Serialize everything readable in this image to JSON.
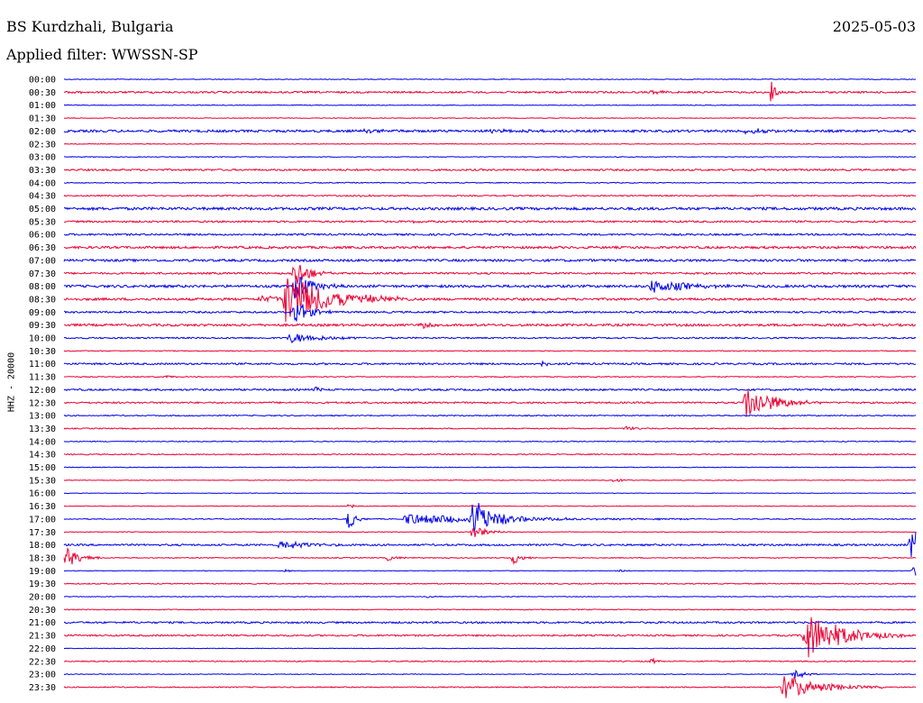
{
  "header": {
    "station": "BS Kurdzhali, Bulgaria",
    "date": "2025-05-03",
    "filter": "Applied filter: WWSSN-SP"
  },
  "chart_data": {
    "type": "line",
    "title": "BS Kurdzhali, Bulgaria",
    "date": "2025-05-03",
    "filter": "WWSSN-SP",
    "ylabel": "HHZ - 20000",
    "row_labels": [
      "00:00",
      "00:30",
      "01:00",
      "01:30",
      "02:00",
      "02:30",
      "03:00",
      "03:30",
      "04:00",
      "04:30",
      "05:00",
      "05:30",
      "06:00",
      "06:30",
      "07:00",
      "07:30",
      "08:00",
      "08:30",
      "09:00",
      "09:30",
      "10:00",
      "10:30",
      "11:00",
      "11:30",
      "12:00",
      "12:30",
      "13:00",
      "13:30",
      "14:00",
      "14:30",
      "15:00",
      "15:30",
      "16:00",
      "16:30",
      "17:00",
      "17:30",
      "18:00",
      "18:30",
      "19:00",
      "19:30",
      "20:00",
      "20:30",
      "21:00",
      "21:30",
      "22:00",
      "22:30",
      "23:00",
      "23:30"
    ],
    "colors": {
      "even": "#0000ee",
      "odd": "#ee0033"
    },
    "rows": [
      {
        "t": "00:00",
        "noise": 0.4,
        "events": []
      },
      {
        "t": "00:30",
        "noise": 1.0,
        "events": [
          {
            "at": 0.83,
            "amp": 16,
            "dur": 0.005
          },
          {
            "at": 0.69,
            "amp": 2,
            "dur": 0.02
          },
          {
            "at": 0.01,
            "amp": 2,
            "dur": 0.01
          }
        ]
      },
      {
        "t": "01:00",
        "noise": 0.4,
        "events": []
      },
      {
        "t": "01:30",
        "noise": 0.4,
        "events": []
      },
      {
        "t": "02:00",
        "noise": 1.3,
        "events": [
          {
            "at": 0.35,
            "amp": 2,
            "dur": 0.02
          },
          {
            "at": 0.8,
            "amp": 3,
            "dur": 0.03
          },
          {
            "at": 0.5,
            "amp": 1.5,
            "dur": 0.05
          }
        ]
      },
      {
        "t": "02:30",
        "noise": 0.4,
        "events": []
      },
      {
        "t": "03:00",
        "noise": 0.4,
        "events": []
      },
      {
        "t": "03:30",
        "noise": 1.0,
        "events": []
      },
      {
        "t": "04:00",
        "noise": 0.5,
        "events": []
      },
      {
        "t": "04:30",
        "noise": 0.7,
        "events": [
          {
            "at": 0.35,
            "amp": 2,
            "dur": 0.01
          }
        ]
      },
      {
        "t": "05:00",
        "noise": 1.5,
        "events": []
      },
      {
        "t": "05:30",
        "noise": 1.0,
        "events": [
          {
            "at": 0.41,
            "amp": 2,
            "dur": 0.01
          }
        ]
      },
      {
        "t": "06:00",
        "noise": 1.0,
        "events": []
      },
      {
        "t": "06:30",
        "noise": 1.3,
        "events": []
      },
      {
        "t": "07:00",
        "noise": 1.3,
        "events": []
      },
      {
        "t": "07:30",
        "noise": 1.0,
        "events": [
          {
            "at": 0.271,
            "amp": 18,
            "dur": 0.015
          }
        ]
      },
      {
        "t": "08:00",
        "noise": 1.4,
        "events": [
          {
            "at": 0.69,
            "amp": 8,
            "dur": 0.04
          },
          {
            "at": 0.271,
            "amp": 16,
            "dur": 0.02
          }
        ]
      },
      {
        "t": "08:30",
        "noise": 1.3,
        "events": [
          {
            "at": 0.26,
            "amp": 28,
            "dur": 0.05
          },
          {
            "at": 0.23,
            "amp": 4,
            "dur": 0.03
          }
        ]
      },
      {
        "t": "09:00",
        "noise": 1.0,
        "events": [
          {
            "at": 0.271,
            "amp": 16,
            "dur": 0.015
          }
        ]
      },
      {
        "t": "09:30",
        "noise": 1.3,
        "events": [
          {
            "at": 0.42,
            "amp": 3,
            "dur": 0.02
          }
        ]
      },
      {
        "t": "10:00",
        "noise": 0.8,
        "events": [
          {
            "at": 0.265,
            "amp": 6,
            "dur": 0.04
          }
        ]
      },
      {
        "t": "10:30",
        "noise": 0.5,
        "events": []
      },
      {
        "t": "11:00",
        "noise": 1.0,
        "events": [
          {
            "at": 0.56,
            "amp": 3,
            "dur": 0.01
          }
        ]
      },
      {
        "t": "11:30",
        "noise": 0.5,
        "events": [
          {
            "at": 0.12,
            "amp": 2,
            "dur": 0.01
          }
        ]
      },
      {
        "t": "12:00",
        "noise": 1.0,
        "events": [
          {
            "at": 0.295,
            "amp": 4,
            "dur": 0.01
          }
        ]
      },
      {
        "t": "12:30",
        "noise": 0.9,
        "events": [
          {
            "at": 0.8,
            "amp": 20,
            "dur": 0.03
          }
        ]
      },
      {
        "t": "13:00",
        "noise": 0.6,
        "events": []
      },
      {
        "t": "13:30",
        "noise": 0.6,
        "events": [
          {
            "at": 0.66,
            "amp": 3,
            "dur": 0.01
          }
        ]
      },
      {
        "t": "14:00",
        "noise": 0.5,
        "events": []
      },
      {
        "t": "14:30",
        "noise": 0.6,
        "events": []
      },
      {
        "t": "15:00",
        "noise": 0.4,
        "events": []
      },
      {
        "t": "15:30",
        "noise": 0.4,
        "events": [
          {
            "at": 0.645,
            "amp": 2,
            "dur": 0.015
          }
        ]
      },
      {
        "t": "16:00",
        "noise": 0.3,
        "events": []
      },
      {
        "t": "16:30",
        "noise": 0.4,
        "events": [
          {
            "at": 0.334,
            "amp": 6,
            "dur": 0.004
          }
        ]
      },
      {
        "t": "17:00",
        "noise": 0.5,
        "events": [
          {
            "at": 0.334,
            "amp": 12,
            "dur": 0.008
          },
          {
            "at": 0.4,
            "amp": 6,
            "dur": 0.12
          },
          {
            "at": 0.48,
            "amp": 20,
            "dur": 0.025
          }
        ]
      },
      {
        "t": "17:30",
        "noise": 0.4,
        "events": [
          {
            "at": 0.48,
            "amp": 8,
            "dur": 0.015
          }
        ]
      },
      {
        "t": "18:00",
        "noise": 1.0,
        "events": [
          {
            "at": 0.254,
            "amp": 7,
            "dur": 0.025
          },
          {
            "at": 0.995,
            "amp": 25,
            "dur": 0.018
          }
        ]
      },
      {
        "t": "18:30",
        "noise": 0.5,
        "events": [
          {
            "at": 0.003,
            "amp": 12,
            "dur": 0.015
          },
          {
            "at": 0.38,
            "amp": 3,
            "dur": 0.015
          },
          {
            "at": 0.527,
            "amp": 8,
            "dur": 0.01
          }
        ]
      },
      {
        "t": "19:00",
        "noise": 0.3,
        "events": [
          {
            "at": 0.258,
            "amp": 2,
            "dur": 0.008
          },
          {
            "at": 0.65,
            "amp": 2,
            "dur": 0.008
          },
          {
            "at": 0.998,
            "amp": 8,
            "dur": 0.005
          }
        ]
      },
      {
        "t": "19:30",
        "noise": 0.6,
        "events": []
      },
      {
        "t": "20:00",
        "noise": 0.4,
        "events": [
          {
            "at": 0.425,
            "amp": 2,
            "dur": 0.01
          }
        ]
      },
      {
        "t": "20:30",
        "noise": 0.5,
        "events": []
      },
      {
        "t": "21:00",
        "noise": 1.0,
        "events": []
      },
      {
        "t": "21:30",
        "noise": 0.9,
        "events": [
          {
            "at": 0.87,
            "amp": 28,
            "dur": 0.04
          }
        ]
      },
      {
        "t": "22:00",
        "noise": 0.3,
        "events": []
      },
      {
        "t": "22:30",
        "noise": 0.6,
        "events": [
          {
            "at": 0.69,
            "amp": 3,
            "dur": 0.01
          }
        ]
      },
      {
        "t": "23:00",
        "noise": 0.4,
        "events": [
          {
            "at": 0.857,
            "amp": 8,
            "dur": 0.01
          }
        ]
      },
      {
        "t": "23:30",
        "noise": 0.6,
        "events": [
          {
            "at": 0.845,
            "amp": 14,
            "dur": 0.04
          }
        ]
      }
    ]
  }
}
